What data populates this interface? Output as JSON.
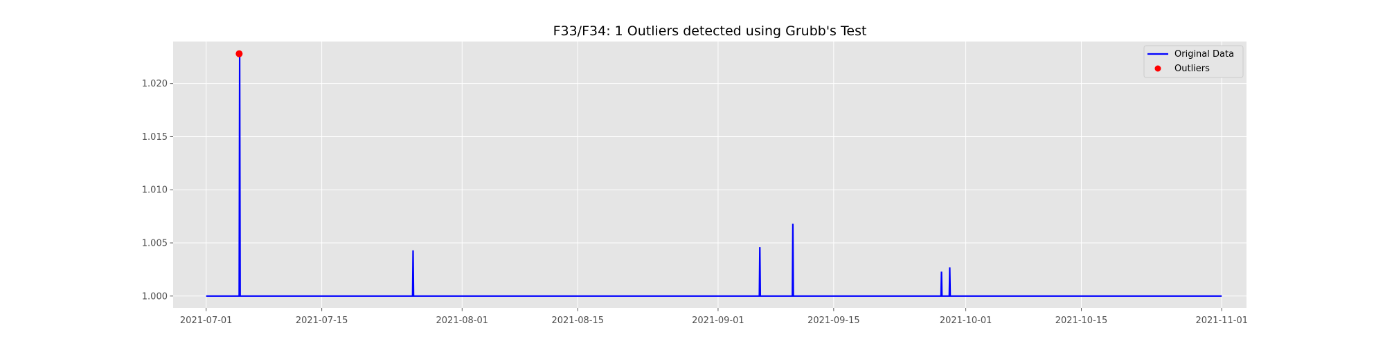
{
  "chart_data": {
    "type": "line",
    "title": "F33/F34: 1 Outliers detected using Grubb's Test",
    "xlabel": "",
    "ylabel": "",
    "x_range": [
      "2021-06-27",
      "2021-11-04"
    ],
    "ylim": [
      0.99888,
      1.02395
    ],
    "x_ticks": [
      "2021-07-01",
      "2021-07-15",
      "2021-08-01",
      "2021-08-15",
      "2021-09-01",
      "2021-09-15",
      "2021-10-01",
      "2021-10-15",
      "2021-11-01"
    ],
    "y_ticks": [
      "1.000",
      "1.005",
      "1.010",
      "1.015",
      "1.020"
    ],
    "grid": true,
    "legend_position": "upper right",
    "series": [
      {
        "name": "Original Data",
        "color": "#0000ff",
        "style": "line",
        "x": [
          "2021-07-01",
          "2021-07-05",
          "2021-07-05",
          "2021-07-05",
          "2021-07-26",
          "2021-07-26",
          "2021-07-26",
          "2021-09-06",
          "2021-09-06",
          "2021-09-06",
          "2021-09-10",
          "2021-09-10",
          "2021-09-10",
          "2021-09-28",
          "2021-09-28",
          "2021-09-28",
          "2021-09-29",
          "2021-09-29",
          "2021-09-29",
          "2021-11-01"
        ],
        "y": [
          1.0,
          1.0,
          1.0227,
          1.0,
          1.0,
          1.0043,
          1.0,
          1.0,
          1.0046,
          1.0,
          1.0,
          1.0068,
          1.0,
          1.0,
          1.0023,
          1.0,
          1.0,
          1.0027,
          1.0,
          1.0
        ]
      },
      {
        "name": "Outliers",
        "color": "#ff0000",
        "style": "scatter",
        "x": [
          "2021-07-05"
        ],
        "y": [
          1.0228
        ]
      }
    ]
  }
}
